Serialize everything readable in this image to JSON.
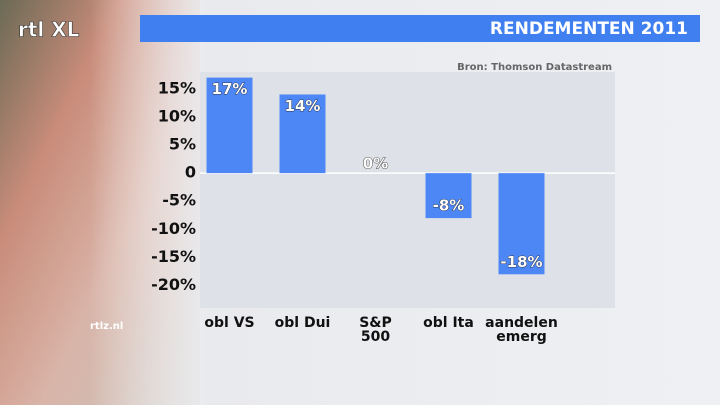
{
  "chart_data": {
    "type": "bar",
    "title": "RENDEMENTEN 2011",
    "source": "Bron: Thomson Datastream",
    "logo": "rtl XL",
    "website": "rtlz.nl",
    "categories": [
      "obl VS",
      "obl Dui",
      "S&P 500",
      "obl Ita",
      "aandelen emerg"
    ],
    "values": [
      17,
      14,
      0,
      -8,
      -18
    ],
    "value_labels": [
      "17%",
      "14%",
      "0%",
      "-8%",
      "-18%"
    ],
    "color": "#4d86f5",
    "ylim": [
      -24,
      18
    ],
    "yticks": [
      {
        "value": 15,
        "label": "15%"
      },
      {
        "value": 10,
        "label": "10%"
      },
      {
        "value": 5,
        "label": "5%"
      },
      0,
      {
        "value": -5,
        "label": "-5%"
      },
      {
        "value": -10,
        "label": "-10%"
      },
      {
        "value": -15,
        "label": "-15%"
      },
      {
        "value": -20,
        "label": "-20%"
      }
    ],
    "zero_line": true
  }
}
